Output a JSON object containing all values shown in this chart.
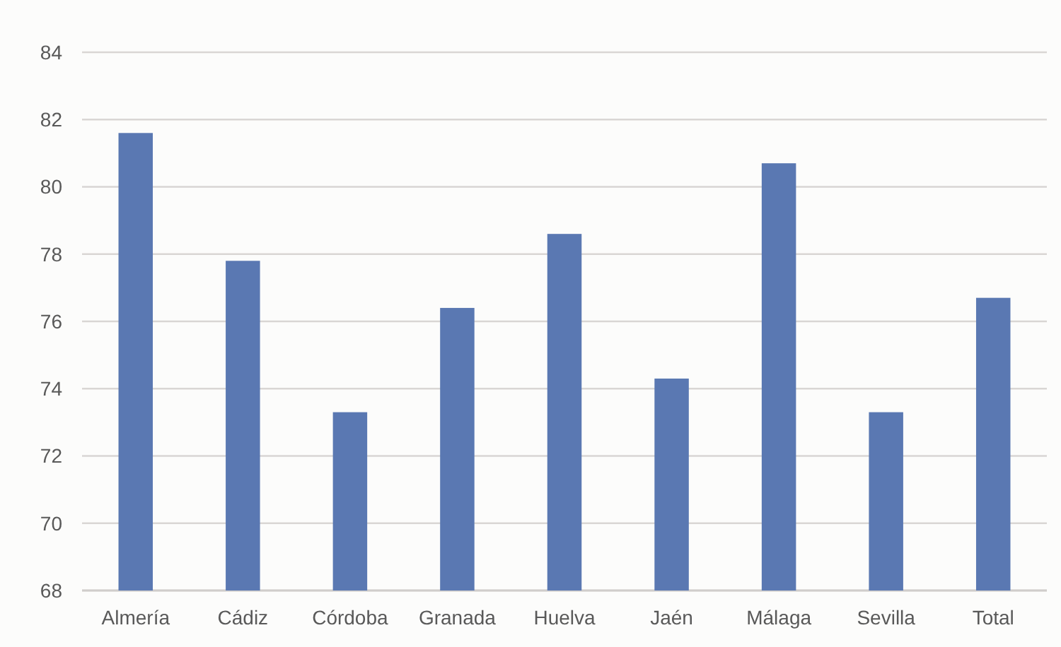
{
  "chart_data": {
    "type": "bar",
    "categories": [
      "Almería",
      "Cádiz",
      "Córdoba",
      "Granada",
      "Huelva",
      "Jaén",
      "Málaga",
      "Sevilla",
      "Total"
    ],
    "values": [
      81.6,
      77.8,
      73.3,
      76.4,
      78.6,
      74.3,
      80.7,
      73.3,
      76.7
    ],
    "color": "#5a78b2",
    "ylim": [
      68,
      84
    ],
    "yticks": [
      68,
      70,
      72,
      74,
      76,
      78,
      80,
      82,
      84
    ],
    "grid": "y"
  }
}
